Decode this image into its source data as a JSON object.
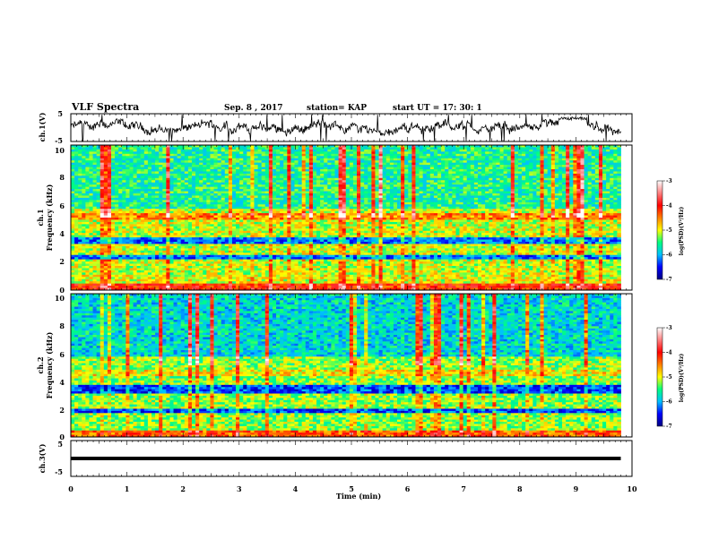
{
  "header": {
    "title": "VLF Spectra",
    "date": "Sep. 8  , 2017",
    "station": "station= KAP",
    "start": "start  UT  =   17: 30: 1"
  },
  "chart_data": {
    "type": "heatmap",
    "x_label": "Time  (min)",
    "x_range": [
      0,
      10
    ],
    "x_ticks": [
      "0",
      "1",
      "2",
      "3",
      "4",
      "5",
      "6",
      "7",
      "8",
      "9",
      "10"
    ],
    "panels": [
      {
        "id": "ch1-waveform",
        "type": "line",
        "ylabel": "ch.1(V)",
        "y_range": [
          -5,
          5
        ],
        "y_ticks": [
          "5",
          "-5"
        ],
        "data_end_min": 9.8
      },
      {
        "id": "ch1-spectrogram",
        "type": "heatmap",
        "ylabel_lines": [
          "ch.1",
          "Frequency  (kHz)"
        ],
        "y_range": [
          0,
          10
        ],
        "y_ticks": [
          "10",
          "8",
          "6",
          "4",
          "2",
          "0"
        ],
        "data_end_min": 9.8
      },
      {
        "id": "ch2-spectrogram",
        "type": "heatmap",
        "ylabel_lines": [
          "ch.2",
          "Frequency  (kHz)"
        ],
        "y_range": [
          0,
          10
        ],
        "y_ticks": [
          "10",
          "8",
          "6",
          "4",
          "2",
          "0"
        ],
        "data_end_min": 9.8
      },
      {
        "id": "ch3-waveform",
        "type": "line",
        "ylabel": "ch.3(V)",
        "y_range": [
          -5,
          5
        ],
        "y_ticks": [
          "5",
          "-5"
        ],
        "constant_value": 0,
        "data_end_min": 9.8
      }
    ],
    "colorbar": {
      "label": "log(PSD)(V²/Hz)",
      "range": [
        -7,
        -3
      ],
      "ticks": [
        "-3",
        "-4",
        "-5",
        "-6",
        "-7"
      ],
      "colormap": [
        "#000080",
        "#0000ff",
        "#00c0ff",
        "#00ff80",
        "#ffff00",
        "#ff8000",
        "#ff0000",
        "#ff8080",
        "#ffffff"
      ]
    }
  }
}
